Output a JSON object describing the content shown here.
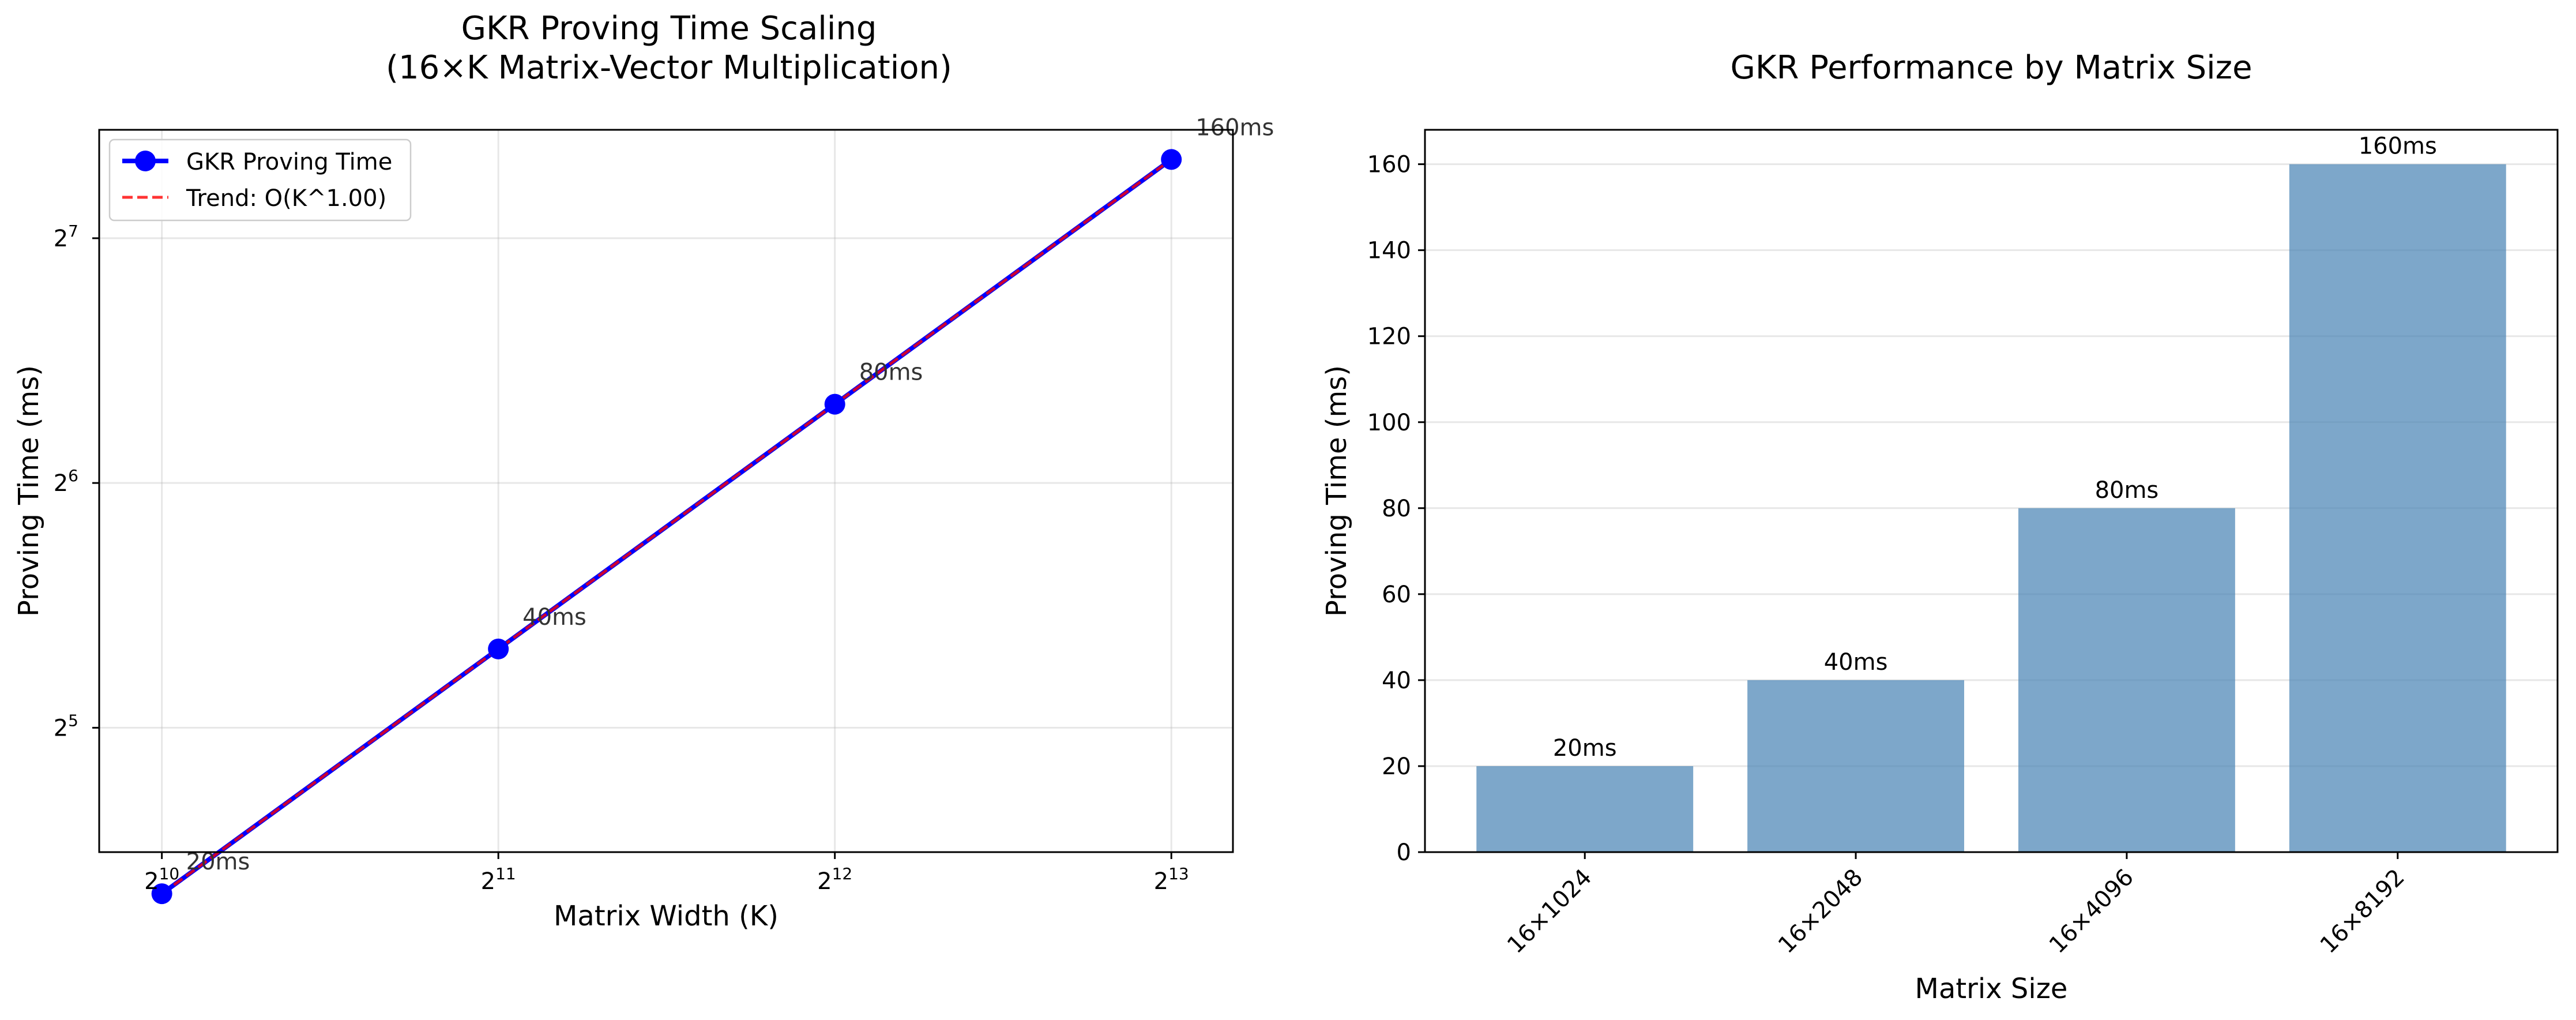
{
  "chart_data": [
    {
      "type": "line",
      "title_line1": "GKR Proving Time Scaling",
      "title_line2": "(16×K Matrix-Vector Multiplication)",
      "xlabel": "Matrix Width (K)",
      "ylabel": "Proving Time (ms)",
      "xscale": "log2",
      "yscale": "log2",
      "xlim": [
        900,
        9300
      ],
      "ylim": [
        22.5,
        174
      ],
      "grid": true,
      "legend_position": "top-left",
      "xticks": [
        {
          "value": 1024,
          "base": "2",
          "exp": "10"
        },
        {
          "value": 2048,
          "base": "2",
          "exp": "11"
        },
        {
          "value": 4096,
          "base": "2",
          "exp": "12"
        },
        {
          "value": 8192,
          "base": "2",
          "exp": "13"
        }
      ],
      "yticks": [
        {
          "value": 32,
          "base": "2",
          "exp": "5"
        },
        {
          "value": 64,
          "base": "2",
          "exp": "6"
        },
        {
          "value": 128,
          "base": "2",
          "exp": "7"
        }
      ],
      "x": [
        1024,
        2048,
        4096,
        8192
      ],
      "series": [
        {
          "name": "GKR Proving Time",
          "values": [
            20,
            40,
            80,
            160
          ],
          "color": "#0000ff",
          "style": "solid-markers"
        },
        {
          "name": "Trend: O(K^1.00)",
          "values": [
            20,
            40,
            80,
            160
          ],
          "color": "#ff0000",
          "style": "dashed"
        }
      ],
      "point_labels": [
        "20ms",
        "40ms",
        "80ms",
        "160ms"
      ]
    },
    {
      "type": "bar",
      "title": "GKR Performance by Matrix Size",
      "xlabel": "Matrix Size",
      "ylabel": "Proving Time (ms)",
      "categories": [
        "16×1024",
        "16×2048",
        "16×4096",
        "16×8192"
      ],
      "values": [
        20,
        40,
        80,
        160
      ],
      "bar_labels": [
        "20ms",
        "40ms",
        "80ms",
        "160ms"
      ],
      "ylim": [
        0,
        168
      ],
      "yticks": [
        0,
        20,
        40,
        60,
        80,
        100,
        120,
        140,
        160
      ],
      "grid_axis": "y",
      "bar_color": "#4682b4",
      "bar_opacity": 0.7
    }
  ]
}
